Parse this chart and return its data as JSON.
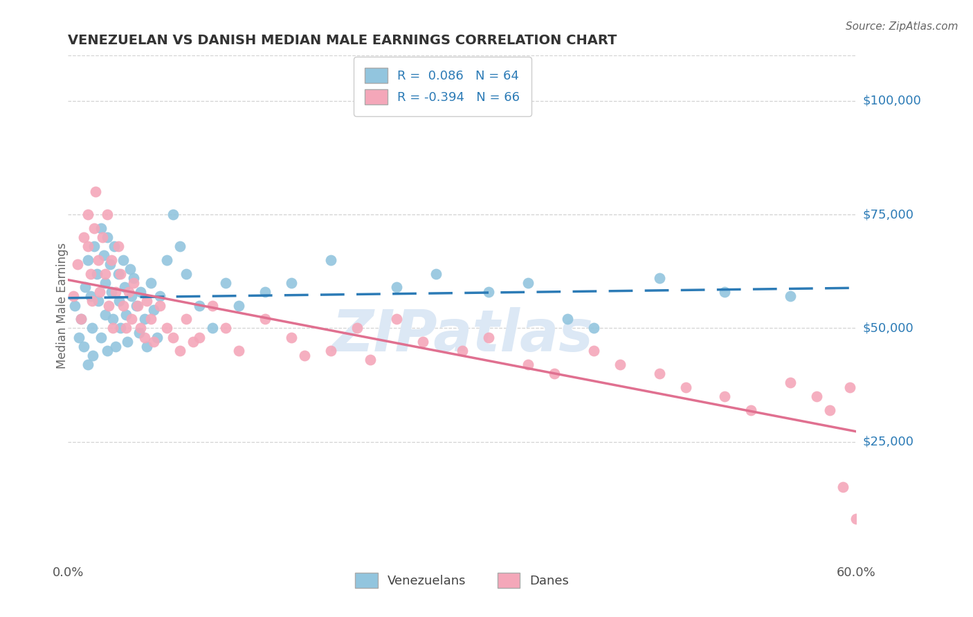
{
  "title": "VENEZUELAN VS DANISH MEDIAN MALE EARNINGS CORRELATION CHART",
  "source": "Source: ZipAtlas.com",
  "ylabel": "Median Male Earnings",
  "ytick_values": [
    25000,
    50000,
    75000,
    100000
  ],
  "ytick_labels": [
    "$25,000",
    "$50,000",
    "$75,000",
    "$100,000"
  ],
  "ylim": [
    0,
    110000
  ],
  "xlim": [
    0.0,
    0.6
  ],
  "blue_R": "0.086",
  "blue_N": "64",
  "pink_R": "-0.394",
  "pink_N": "66",
  "blue_dot_color": "#92c5de",
  "pink_dot_color": "#f4a7b9",
  "blue_line_color": "#2c7bb6",
  "pink_line_color": "#e07090",
  "legend_venezuelans": "Venezuelans",
  "legend_danes": "Danes",
  "bg_color": "#ffffff",
  "grid_color": "#c8c8c8",
  "title_color": "#333333",
  "axis_label_color": "#666666",
  "right_tick_color": "#2c7bb6",
  "source_color": "#666666",
  "blue_dots_x": [
    0.005,
    0.008,
    0.01,
    0.012,
    0.013,
    0.015,
    0.015,
    0.017,
    0.018,
    0.019,
    0.02,
    0.022,
    0.023,
    0.025,
    0.025,
    0.027,
    0.028,
    0.028,
    0.03,
    0.03,
    0.032,
    0.033,
    0.034,
    0.035,
    0.036,
    0.038,
    0.039,
    0.04,
    0.042,
    0.043,
    0.044,
    0.045,
    0.047,
    0.048,
    0.05,
    0.052,
    0.054,
    0.055,
    0.058,
    0.06,
    0.063,
    0.065,
    0.068,
    0.07,
    0.075,
    0.08,
    0.085,
    0.09,
    0.1,
    0.11,
    0.12,
    0.13,
    0.15,
    0.17,
    0.2,
    0.25,
    0.28,
    0.32,
    0.35,
    0.38,
    0.4,
    0.45,
    0.5,
    0.55
  ],
  "blue_dots_y": [
    55000,
    48000,
    52000,
    46000,
    59000,
    65000,
    42000,
    57000,
    50000,
    44000,
    68000,
    62000,
    56000,
    72000,
    48000,
    66000,
    60000,
    53000,
    70000,
    45000,
    64000,
    58000,
    52000,
    68000,
    46000,
    62000,
    56000,
    50000,
    65000,
    59000,
    53000,
    47000,
    63000,
    57000,
    61000,
    55000,
    49000,
    58000,
    52000,
    46000,
    60000,
    54000,
    48000,
    57000,
    65000,
    75000,
    68000,
    62000,
    55000,
    50000,
    60000,
    55000,
    58000,
    60000,
    65000,
    59000,
    62000,
    58000,
    60000,
    52000,
    50000,
    61000,
    58000,
    57000
  ],
  "pink_dots_x": [
    0.004,
    0.007,
    0.01,
    0.012,
    0.015,
    0.015,
    0.017,
    0.018,
    0.02,
    0.021,
    0.023,
    0.024,
    0.026,
    0.028,
    0.03,
    0.031,
    0.033,
    0.034,
    0.036,
    0.038,
    0.04,
    0.042,
    0.044,
    0.046,
    0.048,
    0.05,
    0.053,
    0.055,
    0.058,
    0.06,
    0.063,
    0.065,
    0.07,
    0.075,
    0.08,
    0.085,
    0.09,
    0.095,
    0.1,
    0.11,
    0.12,
    0.13,
    0.15,
    0.17,
    0.18,
    0.2,
    0.22,
    0.23,
    0.25,
    0.27,
    0.3,
    0.32,
    0.35,
    0.37,
    0.4,
    0.42,
    0.45,
    0.47,
    0.5,
    0.52,
    0.55,
    0.57,
    0.58,
    0.59,
    0.595,
    0.6
  ],
  "pink_dots_y": [
    57000,
    64000,
    52000,
    70000,
    68000,
    75000,
    62000,
    56000,
    72000,
    80000,
    65000,
    58000,
    70000,
    62000,
    75000,
    55000,
    65000,
    50000,
    58000,
    68000,
    62000,
    55000,
    50000,
    58000,
    52000,
    60000,
    55000,
    50000,
    48000,
    56000,
    52000,
    47000,
    55000,
    50000,
    48000,
    45000,
    52000,
    47000,
    48000,
    55000,
    50000,
    45000,
    52000,
    48000,
    44000,
    45000,
    50000,
    43000,
    52000,
    47000,
    45000,
    48000,
    42000,
    40000,
    45000,
    42000,
    40000,
    37000,
    35000,
    32000,
    38000,
    35000,
    32000,
    15000,
    37000,
    8000
  ]
}
